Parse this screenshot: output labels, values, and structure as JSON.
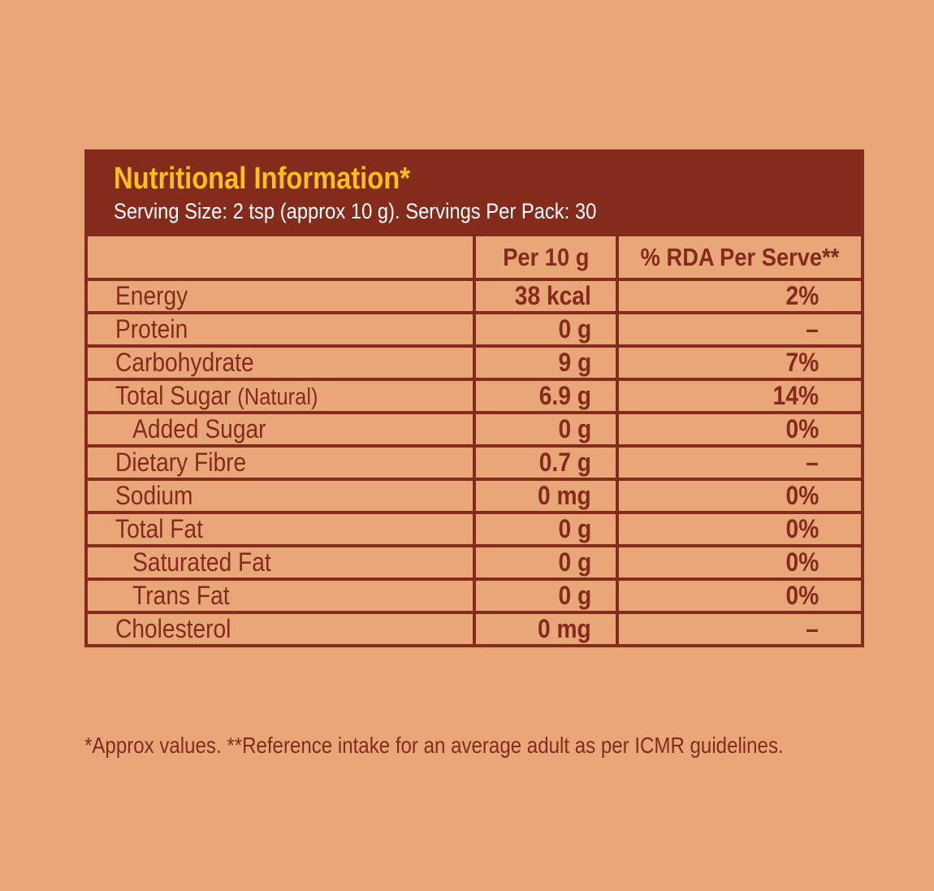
{
  "panel": {
    "title": "Nutritional Information*",
    "subtitle": "Serving Size: 2 tsp (approx 10 g). Servings Per Pack: 30"
  },
  "table": {
    "columns": [
      "",
      "Per 10 g",
      "% RDA Per Serve**"
    ],
    "rows": [
      {
        "name": "Energy",
        "qualifier": "",
        "per": "38 kcal",
        "rda": "2%"
      },
      {
        "name": "Protein",
        "qualifier": "",
        "per": "0 g",
        "rda": "–"
      },
      {
        "name": "Carbohydrate",
        "qualifier": "",
        "per": "9 g",
        "rda": "7%"
      },
      {
        "name": "Total Sugar",
        "qualifier": "(Natural)",
        "per": "6.9 g",
        "rda": "14%"
      },
      {
        "name": "Added Sugar",
        "qualifier": "",
        "per": "0 g",
        "rda": "0%"
      },
      {
        "name": "Dietary Fibre",
        "qualifier": "",
        "per": "0.7 g",
        "rda": "–"
      },
      {
        "name": "Sodium",
        "qualifier": "",
        "per": "0 mg",
        "rda": "0%"
      },
      {
        "name": "Total Fat",
        "qualifier": "",
        "per": "0 g",
        "rda": "0%"
      },
      {
        "name": "Saturated Fat",
        "qualifier": "",
        "per": "0 g",
        "rda": "0%"
      },
      {
        "name": "Trans Fat",
        "qualifier": "",
        "per": "0 g",
        "rda": "0%"
      },
      {
        "name": "Cholesterol",
        "qualifier": "",
        "per": "0 mg",
        "rda": "–"
      }
    ]
  },
  "footnote": "*Approx values. **Reference intake for an average adult as per ICMR guidelines.",
  "colors": {
    "background": "#e8a679",
    "panel": "#852b1b",
    "title": "#f7c01a",
    "subtitle": "#ffffff"
  }
}
